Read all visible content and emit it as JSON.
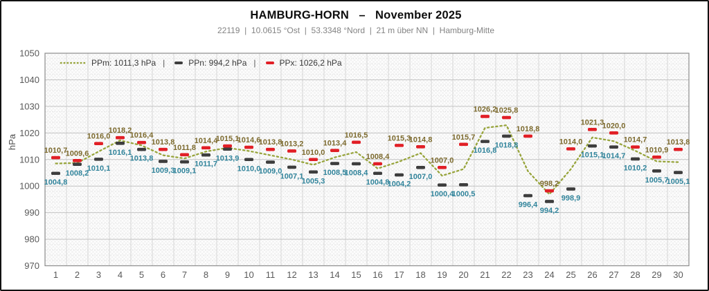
{
  "header": {
    "title": "HAMBURG-HORN   –   November 2025",
    "subtitle": "22119  |  10.0615 °Ost  |  53.3348 °Nord  |  21 m über NN  |  Hamburg-Mitte"
  },
  "legend": {
    "separator": "|",
    "items": [
      {
        "name": "PPm",
        "label": "PPm: 1011,3 hPa"
      },
      {
        "name": "PPn",
        "label": "PPn: 994,2 hPa"
      },
      {
        "name": "PPx",
        "label": "PPx: 1026,2 hPa"
      }
    ]
  },
  "colors": {
    "ppm_line": "#97a43b",
    "ppn_marker": "#3d3d3d",
    "ppx_marker": "#e11f26",
    "ppn_label": "#31849b",
    "ppx_label": "#7c6a2e",
    "axis_text": "#595959",
    "grid_major": "#c2c2c2",
    "grid_minor": "#d9d9d9",
    "grid_vert": "#d6d6d6",
    "plot_border": "#8c8c8c"
  },
  "chart_data": {
    "type": "line",
    "title": "HAMBURG-HORN – November 2025",
    "station": "22119",
    "xlabel": "",
    "ylabel": "hPa",
    "ylim": [
      970,
      1050
    ],
    "yticks": [
      1050,
      1040,
      1030,
      1020,
      1010,
      1000,
      990,
      980,
      970
    ],
    "x": [
      1,
      2,
      3,
      4,
      5,
      6,
      7,
      8,
      9,
      10,
      11,
      12,
      13,
      14,
      15,
      16,
      17,
      18,
      19,
      20,
      21,
      22,
      23,
      24,
      25,
      26,
      27,
      28,
      29,
      30
    ],
    "grid": true,
    "legend_position": "top-left-inside",
    "series": [
      {
        "name": "PPm",
        "style": "dotted-line",
        "summary": "1011,3 hPa",
        "values": [
          1008.5,
          1008.7,
          1013.0,
          1017.2,
          1015.3,
          1011.6,
          1010.4,
          1013.0,
          1014.4,
          1013.2,
          1011.6,
          1010.0,
          1008.0,
          1010.8,
          1012.8,
          1006.6,
          1009.2,
          1012.4,
          1003.9,
          1006.4,
          1021.9,
          1022.9,
          1005.6,
          996.9,
          1006.4,
          1018.3,
          1016.9,
          1013.3,
          1009.3,
          1009.0
        ]
      },
      {
        "name": "PPn",
        "style": "dash-markers",
        "summary": "994,2 hPa",
        "values": [
          1004.8,
          1008.2,
          1010.1,
          1016.1,
          1013.8,
          1009.3,
          1009.1,
          1011.7,
          1013.9,
          1010.0,
          1009.0,
          1007.1,
          1005.3,
          1008.5,
          1008.4,
          1004.8,
          1004.2,
          1007.0,
          1000.4,
          1000.5,
          1016.8,
          1018.8,
          996.4,
          994.2,
          998.9,
          1015.1,
          1014.7,
          1010.2,
          1005.7,
          1005.1
        ],
        "labels": [
          "1004,8",
          "1008,2",
          "1010,1",
          "1016,1",
          "1013,8",
          "1009,3",
          "1009,1",
          "1011,7",
          "1013,9",
          "1010,0",
          "1009,0",
          "1007,1",
          "1005,3",
          "1008,5",
          "1008,4",
          "1004,8",
          "1004,2",
          "1007,0",
          "1000,4",
          "1000,5",
          "1016,8",
          "1018,8",
          "996,4",
          "994,2",
          "998,9",
          "1015,1",
          "1014,7",
          "1010,2",
          "1005,7",
          "1005,1"
        ]
      },
      {
        "name": "PPx",
        "style": "dash-markers",
        "summary": "1026,2 hPa",
        "values": [
          1010.7,
          1009.6,
          1016.0,
          1018.2,
          1016.4,
          1013.8,
          1011.8,
          1014.4,
          1015.1,
          1014.6,
          1013.8,
          1013.2,
          1010.0,
          1013.4,
          1016.5,
          1008.4,
          1015.3,
          1014.8,
          1007.0,
          1015.7,
          1026.2,
          1025.8,
          1018.8,
          998.2,
          1014.0,
          1021.3,
          1020.0,
          1014.7,
          1010.9,
          1013.8
        ],
        "labels": [
          "1010,7",
          "1009,6",
          "1016,0",
          "1018,2",
          "1016,4",
          "1013,8",
          "1011,8",
          "1014,4",
          "1015,1",
          "1014,6",
          "1013,8",
          "1013,2",
          "1010,0",
          "1013,4",
          "1016,5",
          "1008,4",
          "1015,3",
          "1014,8",
          "1007,0",
          "1015,7",
          "1026,2",
          "1025,8",
          "1018,8",
          "998,2",
          "1014,0",
          "1021,3",
          "1020,0",
          "1014,7",
          "1010,9",
          "1013,8"
        ]
      }
    ]
  }
}
